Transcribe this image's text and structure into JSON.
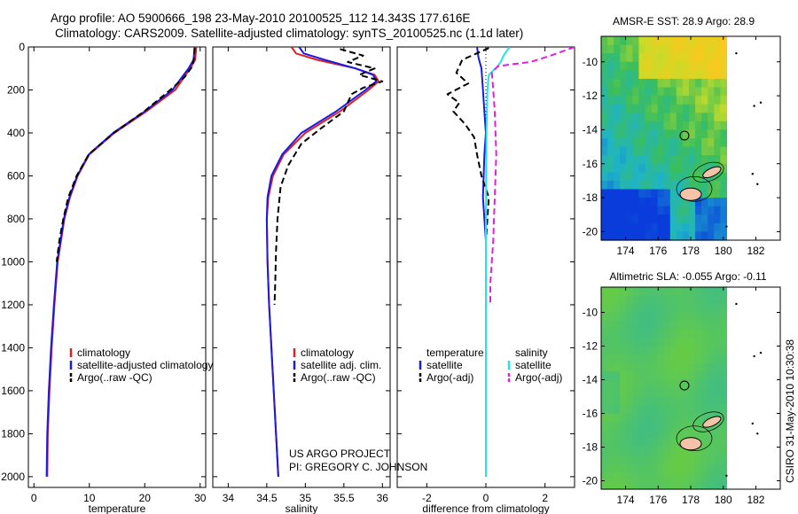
{
  "header": {
    "title_line1": "Argo profile: AO 5900666_198 23-May-2010 20100525_112 14.343S 177.616E",
    "title_line2": "Climatology: CARS2009. Satellite-adjusted climatology: synTS_20100525.nc (1.1d later)"
  },
  "credits": {
    "line1": "US ARGO PROJECT",
    "line2": "PI: GREGORY C. JOHNSON",
    "stamp": "CSIRO 31-May-2010 10:30:38"
  },
  "colors": {
    "climatology": "#e02020",
    "satellite": "#1a1ae6",
    "argo": "#000000",
    "sat_salinity": "#20e6e6",
    "argo_salinity": "#e020e0",
    "map_island": "#f5c3a8"
  },
  "chart_data": [
    {
      "id": "temperature",
      "type": "line",
      "xlabel": "temperature",
      "ylabel": "",
      "xlim": [
        -1,
        31
      ],
      "ylim": [
        2050,
        0
      ],
      "x_ticks": [
        0,
        10,
        20,
        30
      ],
      "y_ticks": [
        0,
        200,
        400,
        600,
        800,
        1000,
        1200,
        1400,
        1600,
        1800,
        2000
      ],
      "legend": [
        {
          "label": "climatology",
          "color": "#e02020",
          "style": "solid"
        },
        {
          "label": "satellite-adjusted climatology",
          "color": "#1a1ae6",
          "style": "solid"
        },
        {
          "label": "Argo(..raw -QC)",
          "color": "#000000",
          "style": "dashed"
        }
      ],
      "series": [
        {
          "name": "climatology",
          "color": "#e02020",
          "style": "solid",
          "x": [
            29.3,
            29.1,
            28.2,
            25.5,
            20.3,
            14.5,
            10.0,
            7.9,
            6.5,
            5.5,
            4.9,
            4.3,
            3.7,
            3.2,
            2.8,
            2.5,
            2.4
          ],
          "y": [
            0,
            60,
            100,
            200,
            300,
            400,
            500,
            600,
            700,
            800,
            900,
            1000,
            1200,
            1400,
            1600,
            1800,
            2000
          ]
        },
        {
          "name": "satellite-adjusted climatology",
          "color": "#1a1ae6",
          "style": "solid",
          "x": [
            29.0,
            28.8,
            27.9,
            25.0,
            20.0,
            14.3,
            9.9,
            7.8,
            6.4,
            5.4,
            4.8,
            4.2,
            3.6,
            3.1,
            2.7,
            2.4,
            2.3
          ],
          "y": [
            0,
            60,
            100,
            200,
            300,
            400,
            500,
            600,
            700,
            800,
            900,
            1000,
            1200,
            1400,
            1600,
            1800,
            2000
          ]
        },
        {
          "name": "Argo(..raw -QC)",
          "color": "#000000",
          "style": "dashed",
          "x": [
            29.0,
            28.9,
            28.6,
            27.2,
            24.6,
            19.9,
            14.4,
            9.9,
            7.7,
            6.2,
            5.3,
            4.6,
            4.1
          ],
          "y": [
            5,
            50,
            90,
            140,
            200,
            300,
            400,
            500,
            600,
            700,
            800,
            900,
            1000
          ]
        }
      ]
    },
    {
      "id": "salinity",
      "type": "line",
      "xlabel": "salinity",
      "ylabel": "",
      "xlim": [
        33.8,
        36.1
      ],
      "ylim": [
        2050,
        0
      ],
      "x_ticks": [
        34,
        34.5,
        35,
        35.5,
        36
      ],
      "legend": [
        {
          "label": "climatology",
          "color": "#e02020",
          "style": "solid"
        },
        {
          "label": "satellite adj. clim.",
          "color": "#1a1ae6",
          "style": "solid"
        },
        {
          "label": "Argo(..raw -QC)",
          "color": "#000000",
          "style": "dashed"
        }
      ],
      "series": [
        {
          "name": "climatology",
          "color": "#e02020",
          "style": "solid",
          "x": [
            34.82,
            34.88,
            35.15,
            35.65,
            35.9,
            35.95,
            35.82,
            35.45,
            35.0,
            34.72,
            34.58,
            34.52,
            34.5,
            34.51,
            34.53,
            34.56,
            34.59,
            34.62,
            34.65
          ],
          "y": [
            0,
            30,
            60,
            100,
            130,
            160,
            200,
            300,
            400,
            500,
            600,
            700,
            800,
            1000,
            1200,
            1400,
            1600,
            1800,
            2000
          ]
        },
        {
          "name": "satellite adj. clim.",
          "color": "#1a1ae6",
          "style": "solid",
          "x": [
            34.92,
            34.98,
            35.25,
            35.65,
            35.88,
            35.92,
            35.78,
            35.4,
            34.95,
            34.7,
            34.56,
            34.51,
            34.5,
            34.51,
            34.53,
            34.56,
            34.59,
            34.62,
            34.65
          ],
          "y": [
            0,
            30,
            60,
            100,
            130,
            160,
            200,
            300,
            400,
            500,
            600,
            700,
            800,
            1000,
            1200,
            1400,
            1600,
            1800,
            2000
          ]
        },
        {
          "name": "Argo(..raw -QC)",
          "color": "#000000",
          "style": "dashed",
          "x": [
            35.45,
            35.75,
            35.55,
            35.9,
            35.7,
            36.0,
            35.75,
            35.6,
            35.5,
            35.2,
            34.95,
            34.78,
            34.68,
            34.64,
            34.62,
            34.61,
            34.6
          ],
          "y": [
            10,
            40,
            70,
            100,
            130,
            160,
            190,
            220,
            300,
            380,
            450,
            550,
            650,
            800,
            950,
            1100,
            1200
          ]
        }
      ]
    },
    {
      "id": "difference",
      "type": "line",
      "xlabel": "difference from climatology",
      "ylabel": "",
      "xlim": [
        -3,
        3
      ],
      "ylim": [
        2050,
        0
      ],
      "x_ticks": [
        -2,
        0,
        2
      ],
      "legend": [
        {
          "label": "temperature",
          "color": "#000000",
          "style": "title"
        },
        {
          "label": "satellite",
          "color": "#1a1ae6",
          "style": "solid"
        },
        {
          "label": "Argo(-adj)",
          "color": "#000000",
          "style": "dashed"
        },
        {
          "label": "salinity",
          "color": "#000000",
          "style": "title"
        },
        {
          "label": "satellite",
          "color": "#20e6e6",
          "style": "solid"
        },
        {
          "label": "Argo(-adj)",
          "color": "#e020e0",
          "style": "dashed"
        }
      ],
      "series": [
        {
          "name": "temperature satellite",
          "color": "#1a1ae6",
          "style": "solid",
          "x": [
            -0.3,
            -0.25,
            -0.15,
            -0.1,
            -0.05,
            0.0,
            -0.05,
            -0.1,
            -0.05,
            0.0,
            0.0,
            0.0,
            0.0,
            0.0
          ],
          "y": [
            0,
            50,
            100,
            200,
            300,
            400,
            500,
            700,
            800,
            900,
            1000,
            1200,
            1600,
            2000
          ]
        },
        {
          "name": "temperature Argo(-adj)",
          "color": "#000000",
          "style": "dashed",
          "x": [
            0.1,
            -0.8,
            -1.0,
            -0.6,
            -1.3,
            -0.9,
            -1.1,
            -0.7,
            -0.4,
            -0.3,
            -0.15,
            0.1,
            0.05,
            0.0,
            0.0,
            0.0
          ],
          "y": [
            5,
            60,
            120,
            170,
            220,
            260,
            300,
            360,
            420,
            500,
            600,
            700,
            800,
            900,
            1000,
            1050
          ]
        },
        {
          "name": "salinity satellite",
          "color": "#20e6e6",
          "style": "solid",
          "x": [
            0.8,
            0.6,
            0.5,
            0.4,
            0.1,
            0.05,
            0.02,
            0.0,
            0.0,
            0.0,
            0.0
          ],
          "y": [
            0,
            40,
            70,
            90,
            130,
            200,
            400,
            800,
            1200,
            1600,
            2000
          ]
        },
        {
          "name": "salinity Argo(-adj)",
          "color": "#e020e0",
          "style": "dashed",
          "x": [
            3.0,
            2.2,
            1.5,
            0.9,
            0.4,
            0.2,
            0.25,
            0.3,
            0.35,
            0.3,
            0.25,
            0.2,
            0.15,
            0.15
          ],
          "y": [
            0,
            40,
            70,
            80,
            90,
            120,
            200,
            300,
            500,
            700,
            900,
            1000,
            1100,
            1200
          ]
        }
      ]
    }
  ],
  "maps": [
    {
      "id": "sst-map",
      "title": "AMSR-E SST: 28.9 Argo: 28.9",
      "type": "heatmap",
      "xlim": [
        172.5,
        183.5
      ],
      "ylim": [
        -20.5,
        -8.5
      ],
      "x_ticks": [
        174,
        176,
        178,
        180,
        182
      ],
      "y_ticks": [
        -10,
        -12,
        -14,
        -16,
        -18,
        -20
      ],
      "data_extent_lon": [
        172.5,
        180.2
      ],
      "argo_position": {
        "lon": 177.616,
        "lat": -14.343
      }
    },
    {
      "id": "sla-map",
      "title": "Altimetric SLA: -0.055 Argo: -0.11",
      "type": "heatmap",
      "xlim": [
        172.5,
        183.5
      ],
      "ylim": [
        -20.5,
        -8.5
      ],
      "x_ticks": [
        174,
        176,
        178,
        180,
        182
      ],
      "y_ticks": [
        -10,
        -12,
        -14,
        -16,
        -18,
        -20
      ],
      "data_extent_lon": [
        172.5,
        180.2
      ],
      "argo_position": {
        "lon": 177.616,
        "lat": -14.343
      }
    }
  ]
}
